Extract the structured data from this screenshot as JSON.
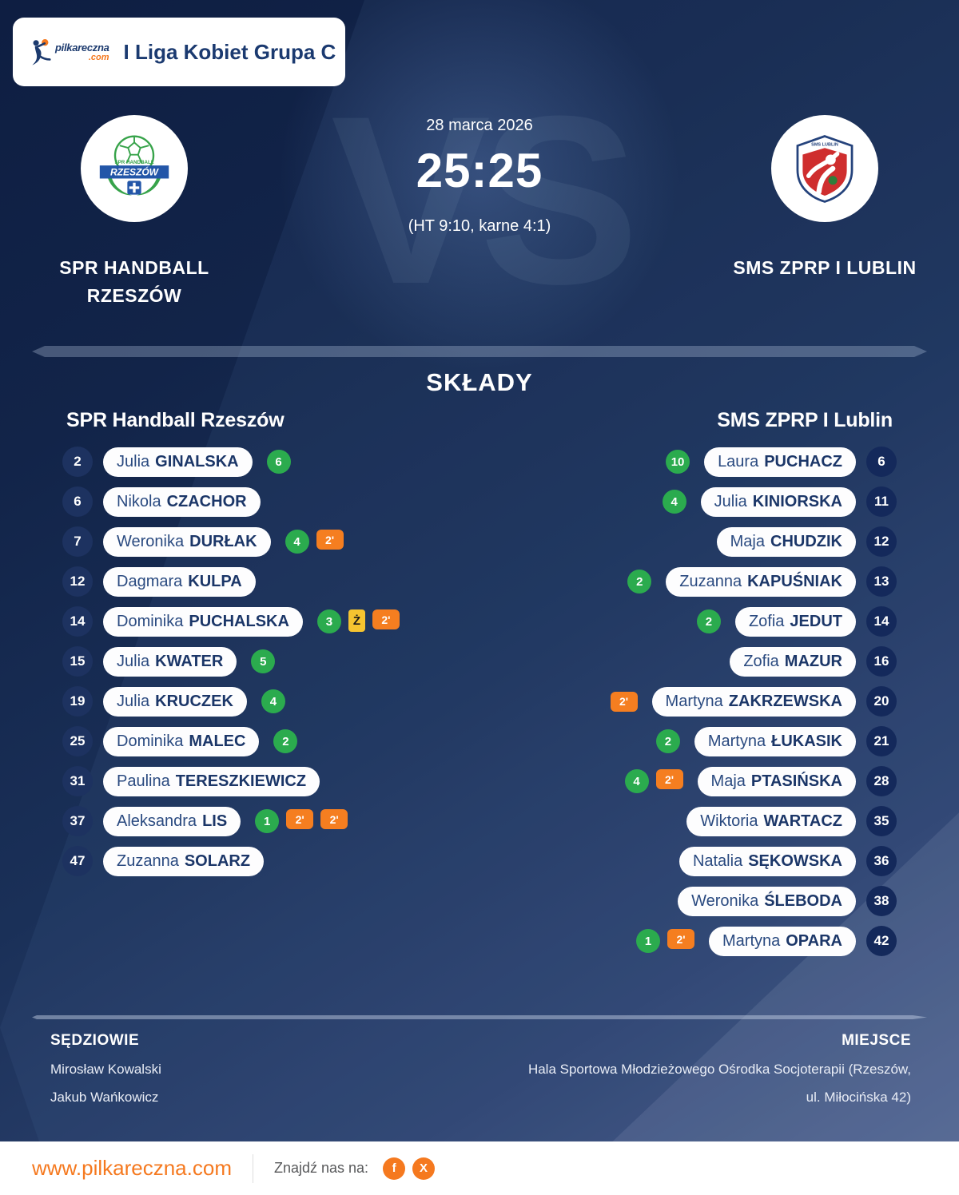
{
  "header": {
    "league": "I Liga Kobiet Grupa C",
    "logo": {
      "name": "pilkareczna",
      "tld": ".com"
    }
  },
  "match": {
    "date": "28 marca 2026",
    "score": "25:25",
    "details": "(HT 9:10, karne 4:1)",
    "vs": "VS",
    "home": {
      "name": "SPR HANDBALL RZESZÓW",
      "crest": {
        "line1": "SPR HANDBALL",
        "line2": "RZESZÓW"
      }
    },
    "away": {
      "name": "SMS ZPRP I LUBLIN",
      "crest": {
        "line1": "SMS LUBLIN"
      }
    }
  },
  "lineups": {
    "title": "SKŁADY",
    "home": {
      "header": "SPR Handball Rzeszów",
      "players": [
        {
          "number": "2",
          "first": "Julia",
          "last": "GINALSKA",
          "goals": "6",
          "cards": []
        },
        {
          "number": "6",
          "first": "Nikola",
          "last": "CZACHOR",
          "goals": null,
          "cards": []
        },
        {
          "number": "7",
          "first": "Weronika",
          "last": "DURŁAK",
          "goals": "4",
          "cards": [
            {
              "type": "two-min",
              "label": "2'"
            }
          ]
        },
        {
          "number": "12",
          "first": "Dagmara",
          "last": "KULPA",
          "goals": null,
          "cards": []
        },
        {
          "number": "14",
          "first": "Dominika",
          "last": "PUCHALSKA",
          "goals": "3",
          "cards": [
            {
              "type": "yellow",
              "label": "Ż"
            },
            {
              "type": "two-min",
              "label": "2'"
            }
          ]
        },
        {
          "number": "15",
          "first": "Julia",
          "last": "KWATER",
          "goals": "5",
          "cards": []
        },
        {
          "number": "19",
          "first": "Julia",
          "last": "KRUCZEK",
          "goals": "4",
          "cards": []
        },
        {
          "number": "25",
          "first": "Dominika",
          "last": "MALEC",
          "goals": "2",
          "cards": []
        },
        {
          "number": "31",
          "first": "Paulina",
          "last": "TERESZKIEWICZ",
          "goals": null,
          "cards": []
        },
        {
          "number": "37",
          "first": "Aleksandra",
          "last": "LIS",
          "goals": "1",
          "cards": [
            {
              "type": "two-min",
              "label": "2'"
            },
            {
              "type": "two-min",
              "label": "2'"
            }
          ]
        },
        {
          "number": "47",
          "first": "Zuzanna",
          "last": "SOLARZ",
          "goals": null,
          "cards": []
        }
      ]
    },
    "away": {
      "header": "SMS ZPRP I Lublin",
      "players": [
        {
          "number": "6",
          "first": "Laura",
          "last": "PUCHACZ",
          "goals": "10",
          "cards": []
        },
        {
          "number": "11",
          "first": "Julia",
          "last": "KINIORSKA",
          "goals": "4",
          "cards": []
        },
        {
          "number": "12",
          "first": "Maja",
          "last": "CHUDZIK",
          "goals": null,
          "cards": []
        },
        {
          "number": "13",
          "first": "Zuzanna",
          "last": "KAPUŚNIAK",
          "goals": "2",
          "cards": []
        },
        {
          "number": "14",
          "first": "Zofia",
          "last": "JEDUT",
          "goals": "2",
          "cards": []
        },
        {
          "number": "16",
          "first": "Zofia",
          "last": "MAZUR",
          "goals": null,
          "cards": []
        },
        {
          "number": "20",
          "first": "Martyna",
          "last": "ZAKRZEWSKA",
          "goals": null,
          "cards": [
            {
              "type": "two-min",
              "label": "2'"
            }
          ]
        },
        {
          "number": "21",
          "first": "Martyna",
          "last": "ŁUKASIK",
          "goals": "2",
          "cards": []
        },
        {
          "number": "28",
          "first": "Maja",
          "last": "PTASIŃSKA",
          "goals": "4",
          "cards": [
            {
              "type": "two-min",
              "label": "2'"
            }
          ]
        },
        {
          "number": "35",
          "first": "Wiktoria",
          "last": "WARTACZ",
          "goals": null,
          "cards": []
        },
        {
          "number": "36",
          "first": "Natalia",
          "last": "SĘKOWSKA",
          "goals": null,
          "cards": []
        },
        {
          "number": "38",
          "first": "Weronika",
          "last": "ŚLEBODA",
          "goals": null,
          "cards": []
        },
        {
          "number": "42",
          "first": "Martyna",
          "last": "OPARA",
          "goals": "1",
          "cards": [
            {
              "type": "two-min",
              "label": "2'"
            }
          ]
        }
      ]
    }
  },
  "footer": {
    "referees_title": "SĘDZIOWIE",
    "referees": [
      "Mirosław Kowalski",
      "Jakub Wańkowicz"
    ],
    "venue_title": "MIEJSCE",
    "venue_lines": [
      "Hala Sportowa Młodzieżowego Ośrodka Socjoterapii (Rzeszów,",
      "ul. Miłocińska 42)"
    ]
  },
  "bottom_bar": {
    "url": "www.pilkareczna.com",
    "find_us": "Znajdź nas na:",
    "social": [
      {
        "name": "facebook",
        "label": "f"
      },
      {
        "name": "x",
        "label": "X"
      }
    ]
  },
  "colors": {
    "accent_orange": "#f5791f",
    "goal_green": "#2bab4e",
    "card_yellow": "#f6c430",
    "suspension_orange": "#f57e20",
    "bg_navy": "#13254e",
    "pill_text_navy": "#1b3668"
  }
}
